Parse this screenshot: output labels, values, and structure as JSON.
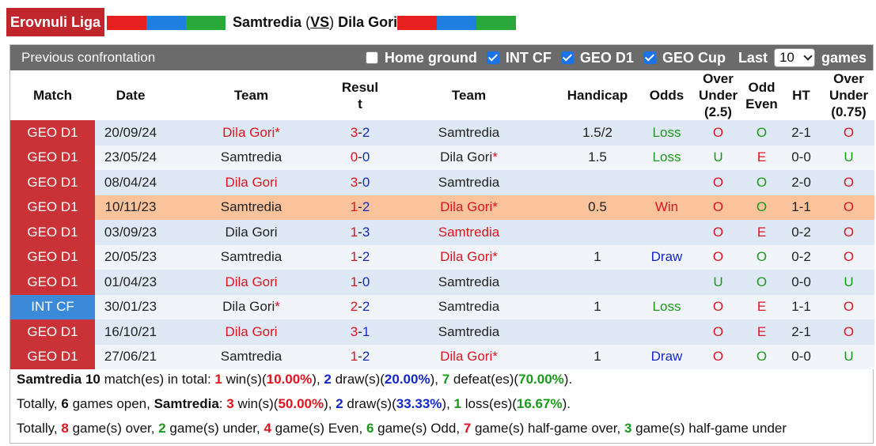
{
  "header": {
    "league": "Erovnuli Liga",
    "home_team": "Samtredia",
    "vs_open": "(",
    "vs_label": "VS",
    "vs_close": ")",
    "away_team": "Dila Gori",
    "colors": {
      "league_badge": "#c0262c",
      "flag_red": "#e8201f",
      "flag_blue": "#1e7fe0",
      "flag_green": "#2aa83a"
    }
  },
  "panel": {
    "title": "Previous confrontation",
    "filters": [
      {
        "label": "Home ground",
        "checked": false
      },
      {
        "label": "INT CF",
        "checked": true
      },
      {
        "label": "GEO D1",
        "checked": true
      },
      {
        "label": "GEO Cup",
        "checked": true
      }
    ],
    "last_label": "Last",
    "last_value": "10",
    "games_label": "games"
  },
  "columns": {
    "match": "Match",
    "date": "Date",
    "team1": "Team",
    "result_a": "Resul",
    "result_b": "t",
    "team2": "Team",
    "handicap": "Handicap",
    "odds": "Odds",
    "ou_a": "Over",
    "ou_b": "Under",
    "ou_c": "(2.5)",
    "oe_a": "Odd",
    "oe_b": "Even",
    "ht": "HT",
    "ou2_a": "Over",
    "ou2_b": "Under",
    "ou2_c": "(0.75)"
  },
  "rows": [
    {
      "comp": "GEO D1",
      "comp_type": "geo",
      "date": "20/09/24",
      "home": "Dila Gori",
      "home_star": "*",
      "home_red": true,
      "score_h": "3",
      "score_a": "2",
      "away": "Samtredia",
      "away_star": "",
      "away_red": false,
      "handicap": "1.5/2",
      "odds": "Loss",
      "ou": "O",
      "oe": "O",
      "ht": "2-1",
      "ou2": "O",
      "highlight": false
    },
    {
      "comp": "GEO D1",
      "comp_type": "geo",
      "date": "23/05/24",
      "home": "Samtredia",
      "home_star": "",
      "home_red": false,
      "score_h": "0",
      "score_a": "0",
      "away": "Dila Gori",
      "away_star": "*",
      "away_red": false,
      "handicap": "1.5",
      "odds": "Loss",
      "ou": "U",
      "oe": "E",
      "ht": "0-0",
      "ou2": "U",
      "highlight": false
    },
    {
      "comp": "GEO D1",
      "comp_type": "geo",
      "date": "08/04/24",
      "home": "Dila Gori",
      "home_star": "",
      "home_red": true,
      "score_h": "3",
      "score_a": "0",
      "away": "Samtredia",
      "away_star": "",
      "away_red": false,
      "handicap": "",
      "odds": "",
      "ou": "O",
      "oe": "O",
      "ht": "2-0",
      "ou2": "O",
      "highlight": false
    },
    {
      "comp": "GEO D1",
      "comp_type": "geo",
      "date": "10/11/23",
      "home": "Samtredia",
      "home_star": "",
      "home_red": false,
      "score_h": "1",
      "score_a": "2",
      "away": "Dila Gori",
      "away_star": "*",
      "away_red": true,
      "handicap": "0.5",
      "odds": "Win",
      "ou": "O",
      "oe": "O",
      "ht": "1-1",
      "ou2": "O",
      "highlight": true
    },
    {
      "comp": "GEO D1",
      "comp_type": "geo",
      "date": "03/09/23",
      "home": "Dila Gori",
      "home_star": "",
      "home_red": false,
      "score_h": "1",
      "score_a": "3",
      "away": "Samtredia",
      "away_star": "",
      "away_red": true,
      "handicap": "",
      "odds": "",
      "ou": "O",
      "oe": "E",
      "ht": "0-2",
      "ou2": "O",
      "highlight": false
    },
    {
      "comp": "GEO D1",
      "comp_type": "geo",
      "date": "20/05/23",
      "home": "Samtredia",
      "home_star": "",
      "home_red": false,
      "score_h": "1",
      "score_a": "2",
      "away": "Dila Gori",
      "away_star": "*",
      "away_red": true,
      "handicap": "1",
      "odds": "Draw",
      "ou": "O",
      "oe": "O",
      "ht": "0-2",
      "ou2": "O",
      "highlight": false
    },
    {
      "comp": "GEO D1",
      "comp_type": "geo",
      "date": "01/04/23",
      "home": "Dila Gori",
      "home_star": "",
      "home_red": true,
      "score_h": "1",
      "score_a": "0",
      "away": "Samtredia",
      "away_star": "",
      "away_red": false,
      "handicap": "",
      "odds": "",
      "ou": "U",
      "oe": "O",
      "ht": "0-0",
      "ou2": "U",
      "highlight": false
    },
    {
      "comp": "INT CF",
      "comp_type": "int",
      "date": "30/01/23",
      "home": "Dila Gori",
      "home_star": "*",
      "home_red": false,
      "score_h": "2",
      "score_a": "2",
      "away": "Samtredia",
      "away_star": "",
      "away_red": false,
      "handicap": "1",
      "odds": "Loss",
      "ou": "O",
      "oe": "E",
      "ht": "1-1",
      "ou2": "O",
      "highlight": false
    },
    {
      "comp": "GEO D1",
      "comp_type": "geo",
      "date": "16/10/21",
      "home": "Dila Gori",
      "home_star": "",
      "home_red": true,
      "score_h": "3",
      "score_a": "1",
      "away": "Samtredia",
      "away_star": "",
      "away_red": false,
      "handicap": "",
      "odds": "",
      "ou": "O",
      "oe": "E",
      "ht": "2-1",
      "ou2": "O",
      "highlight": false
    },
    {
      "comp": "GEO D1",
      "comp_type": "geo",
      "date": "27/06/21",
      "home": "Samtredia",
      "home_star": "",
      "home_red": false,
      "score_h": "1",
      "score_a": "2",
      "away": "Dila Gori",
      "away_star": "*",
      "away_red": true,
      "handicap": "1",
      "odds": "Draw",
      "ou": "O",
      "oe": "O",
      "ht": "0-0",
      "ou2": "U",
      "highlight": false
    }
  ],
  "summary": {
    "line1": {
      "team": "Samtredia",
      "count": "10",
      "t1": " match(es) in total: ",
      "wins": "1",
      "t2": " win(s)(",
      "win_pct": "10.00%",
      "t3": "), ",
      "draws": "2",
      "t4": " draw(s)(",
      "draw_pct": "20.00%",
      "t5": "), ",
      "defeats": "7",
      "t6": " defeat(es)(",
      "defeat_pct": "70.00%",
      "t7": ")."
    },
    "line2": {
      "t0": "Totally, ",
      "open": "6",
      "t1": " games open, ",
      "team": "Samtredia",
      "t2": ": ",
      "wins": "3",
      "t3": " win(s)(",
      "win_pct": "50.00%",
      "t4": "), ",
      "draws": "2",
      "t5": " draw(s)(",
      "draw_pct": "33.33%",
      "t6": "), ",
      "losses": "1",
      "t7": " loss(es)(",
      "loss_pct": "16.67%",
      "t8": ")."
    },
    "line3": {
      "t0": "Totally, ",
      "over": "8",
      "t1": " game(s) over, ",
      "under": "2",
      "t2": " game(s) under, ",
      "even": "4",
      "t3": " game(s) Even, ",
      "odd": "6",
      "t4": " game(s) Odd, ",
      "hgover": "7",
      "t5": " game(s) half-game over, ",
      "hgunder": "3",
      "t6": " game(s) half-game under"
    }
  }
}
